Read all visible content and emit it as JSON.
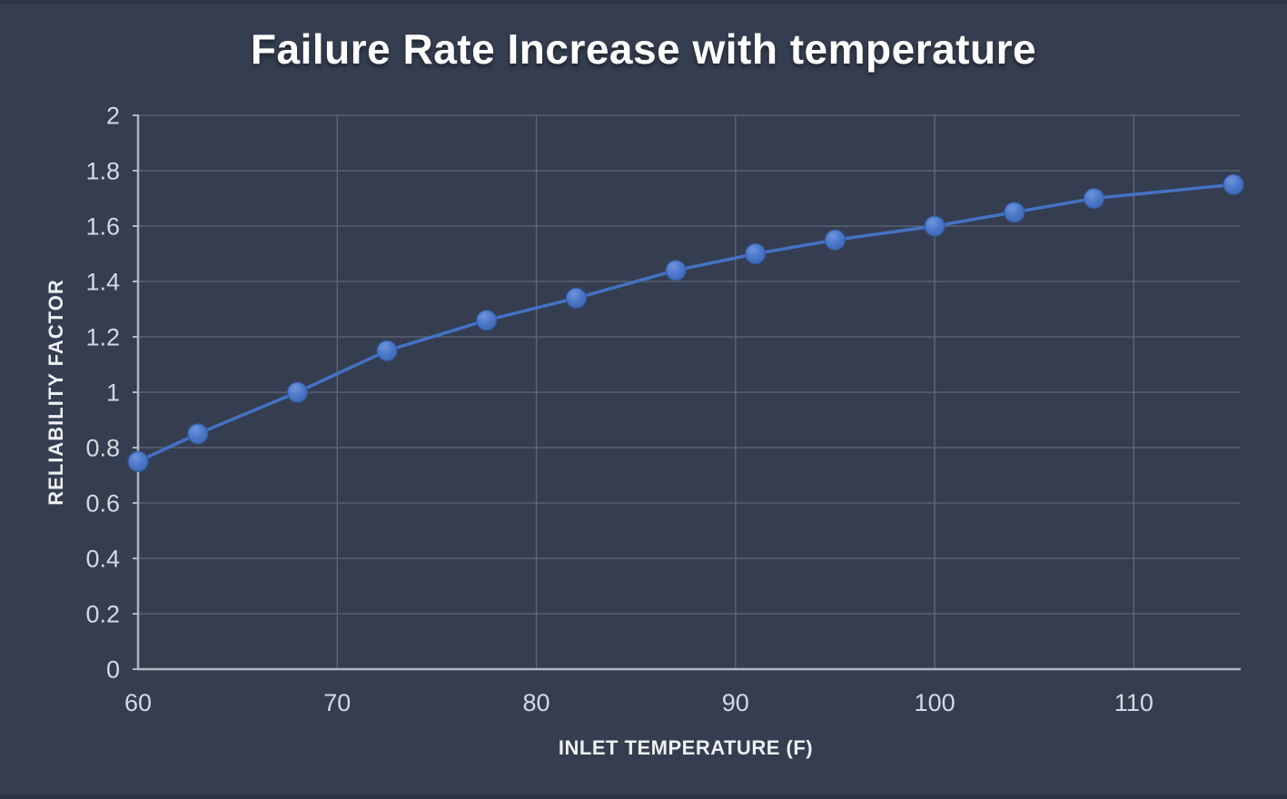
{
  "window": {
    "background": "#343e50",
    "edge_strip_color": "#2c3544"
  },
  "chart_data": {
    "type": "line",
    "title": "Failure Rate Increase with temperature",
    "xlabel": "INLET TEMPERATURE (F)",
    "ylabel": "RELIABILITY FACTOR",
    "series": [
      {
        "name": "Reliability factor",
        "x": [
          60,
          63,
          68,
          72.5,
          77.5,
          82,
          87,
          91,
          95,
          100,
          104,
          108,
          115
        ],
        "y": [
          0.75,
          0.85,
          1.0,
          1.15,
          1.26,
          1.34,
          1.44,
          1.5,
          1.55,
          1.6,
          1.65,
          1.7,
          1.75
        ]
      }
    ],
    "xlim": [
      60,
      115
    ],
    "ylim": [
      0,
      2
    ],
    "xticks": {
      "values": [
        60,
        70,
        80,
        90,
        100,
        110
      ],
      "labels": [
        "60",
        "70",
        "80",
        "90",
        "100",
        "110"
      ]
    },
    "yticks": {
      "values": [
        0,
        0.2,
        0.4,
        0.6,
        0.8,
        1,
        1.2,
        1.4,
        1.6,
        1.8,
        2
      ],
      "labels": [
        "0",
        "0.2",
        "0.4",
        "0.6",
        "0.8",
        "1",
        "1.2",
        "1.4",
        "1.6",
        "1.8",
        "2"
      ]
    },
    "grid": true,
    "legend": "none",
    "colors": {
      "background": "#343e50",
      "line": "#4472c4",
      "marker_fill": "#4472c4",
      "marker_edge": "#35599f",
      "gridline": "#5e6978",
      "axis": "#b2b7bf",
      "tick_label": "#d5dae1",
      "title": "#ffffff",
      "axis_title": "#eef0f3"
    }
  }
}
